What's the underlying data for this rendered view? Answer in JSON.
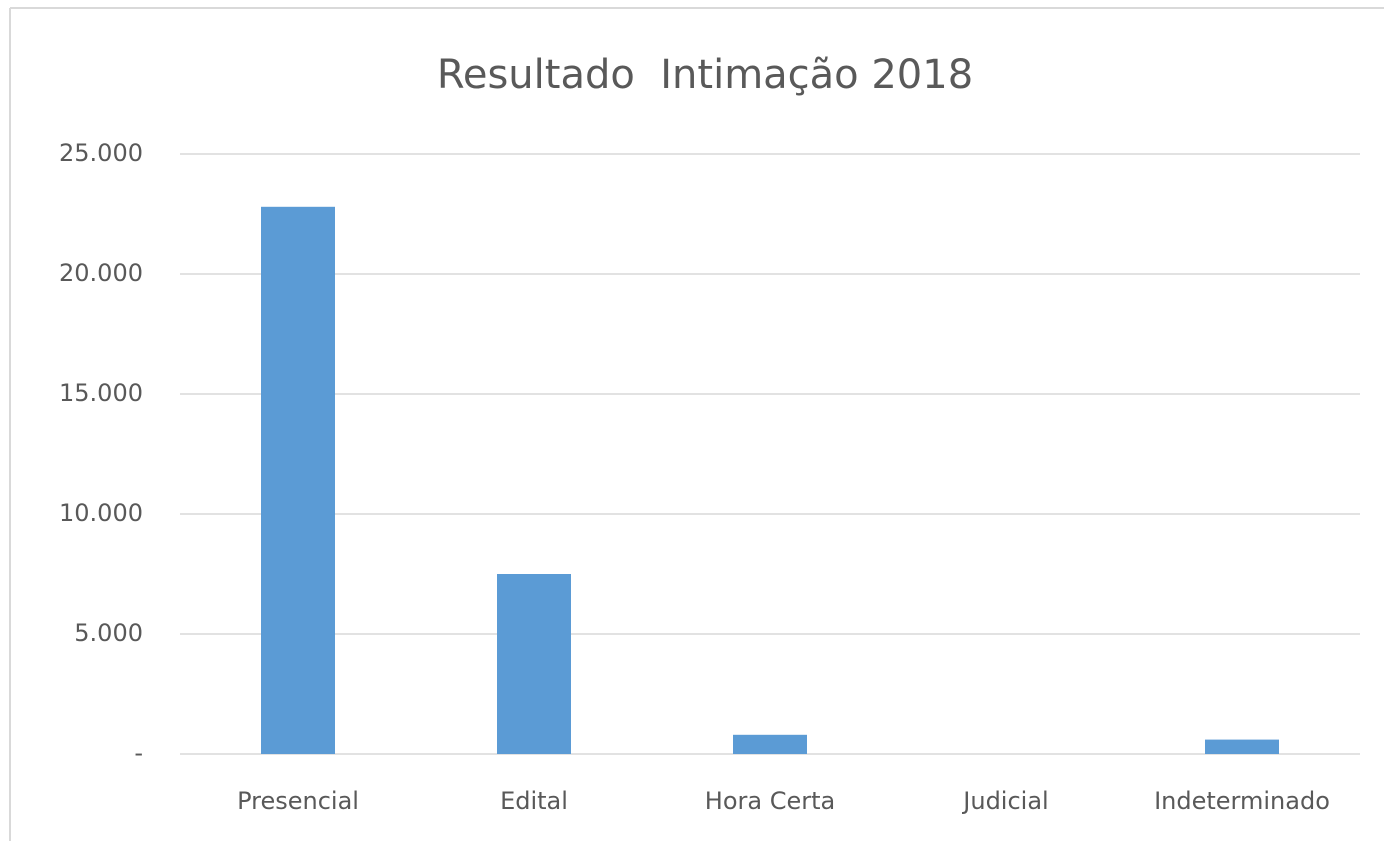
{
  "chart_data": {
    "type": "bar",
    "title": "Resultado  Intimação 2018",
    "categories": [
      "Presencial",
      "Edital",
      "Hora Certa",
      "Judicial",
      "Indeterminado"
    ],
    "values": [
      22800,
      7500,
      800,
      0,
      600
    ],
    "color": "#5b9bd5",
    "ylim": [
      0,
      25000
    ],
    "yticks": [
      {
        "value": 0,
        "label": "-"
      },
      {
        "value": 5000,
        "label": "5.000"
      },
      {
        "value": 10000,
        "label": "10.000"
      },
      {
        "value": 15000,
        "label": "15.000"
      },
      {
        "value": 20000,
        "label": "20.000"
      },
      {
        "value": 25000,
        "label": "25.000"
      }
    ],
    "grid": true
  }
}
